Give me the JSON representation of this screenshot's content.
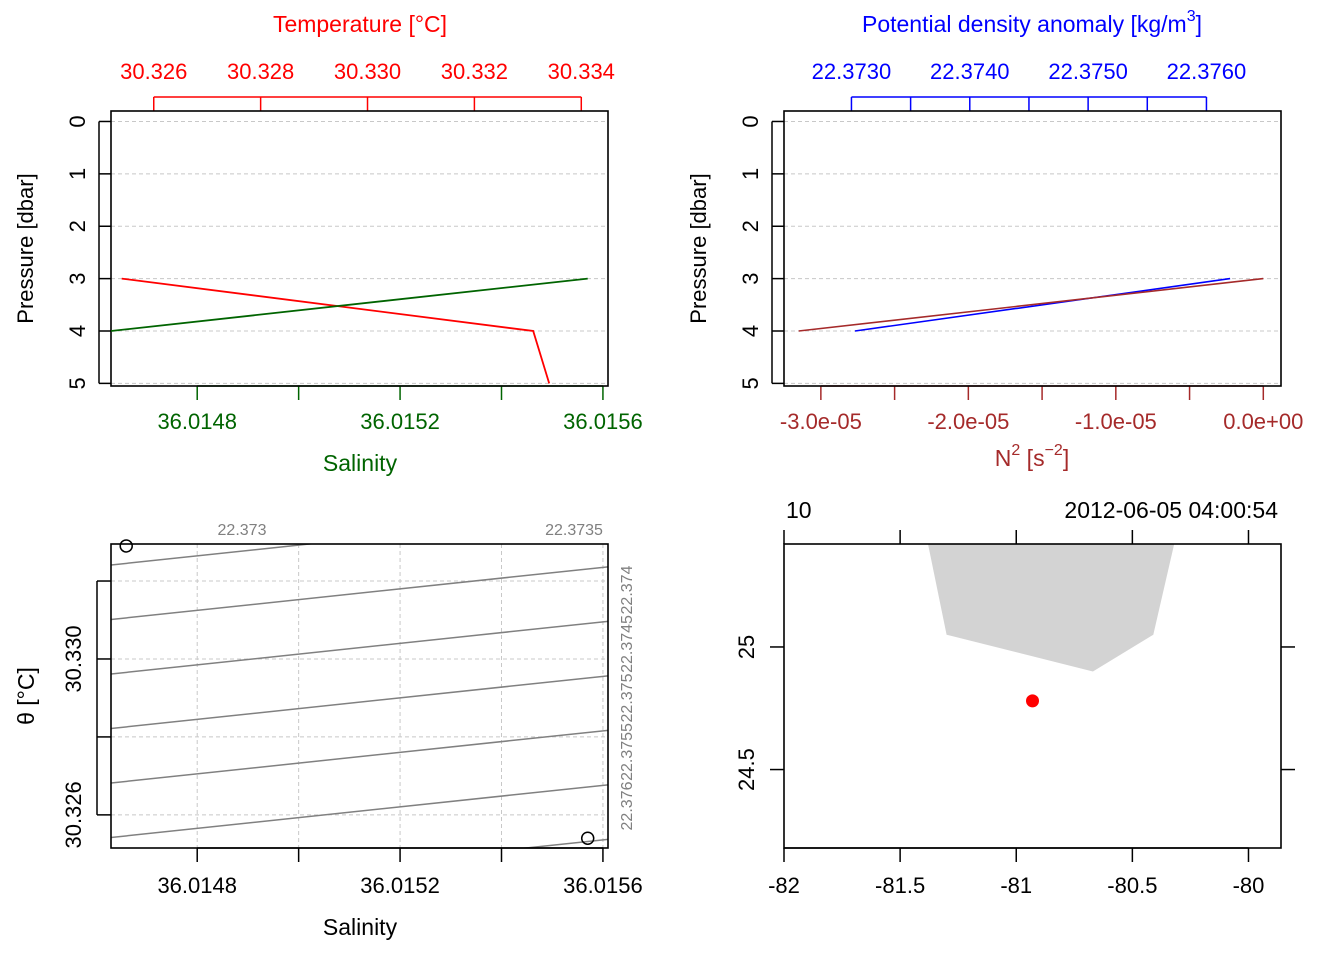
{
  "colors": {
    "temperature": "#ff0000",
    "salinity": "#006400",
    "density": "#0000ff",
    "n2": "#a52a2a",
    "isopycnal": "#808080",
    "grid": "#c8c8c8",
    "land": "#d3d3d3",
    "station": "#ff0000"
  },
  "chart_data": [
    {
      "type": "line",
      "panel": "profile-temperature-salinity",
      "ylabel": "Pressure [dbar]",
      "yticks": [
        "0",
        "1",
        "2",
        "3",
        "4",
        "5"
      ],
      "ylim": [
        5.05,
        -0.2
      ],
      "top_axis": {
        "label": "Temperature [°C]",
        "ticks": [
          "30.326",
          "30.328",
          "30.330",
          "30.332",
          "30.334"
        ],
        "lim": [
          30.3252,
          30.3345
        ]
      },
      "bottom_axis": {
        "label": "Salinity",
        "ticks": [
          "36.0148",
          "36.0152",
          "36.0156"
        ],
        "lim": [
          36.01463,
          36.01561
        ]
      },
      "series": [
        {
          "quantity": "temperature",
          "x": [
            30.3254,
            30.3331,
            30.3334
          ],
          "y": [
            3,
            4,
            5
          ]
        },
        {
          "quantity": "salinity",
          "x": [
            36.01463,
            36.01557
          ],
          "y": [
            4,
            3
          ]
        }
      ],
      "grid": true
    },
    {
      "type": "line",
      "panel": "profile-density-n2",
      "ylabel": "Pressure [dbar]",
      "yticks": [
        "0",
        "1",
        "2",
        "3",
        "4",
        "5"
      ],
      "ylim": [
        5.05,
        -0.2
      ],
      "top_axis": {
        "label": "Potential density anomaly [kg/m",
        "label_sup": "3",
        "label_end": "]",
        "ticks": [
          "22.3730",
          "22.3740",
          "22.3750",
          "22.3760"
        ],
        "lim": [
          22.37243,
          22.37663
        ]
      },
      "bottom_axis": {
        "label": "N",
        "label_sup": "2",
        "label_mid": " [s",
        "label_sup2": "−2",
        "label_end": "]",
        "ticks": [
          "-3.0e-05",
          "-2.0e-05",
          "-1.0e-05",
          "0.0e+00"
        ],
        "lim": [
          -3.25e-05,
          1.2e-06
        ]
      },
      "series": [
        {
          "quantity": "density",
          "x": [
            22.3762,
            22.37303
          ],
          "y": [
            3,
            4
          ]
        },
        {
          "quantity": "n2",
          "x": [
            0.0,
            -3.15e-05
          ],
          "y": [
            3,
            4
          ]
        }
      ],
      "grid": true
    },
    {
      "type": "scatter",
      "panel": "ts-diagram",
      "xlabel": "Salinity",
      "ylabel": "θ [°C]",
      "xticks": [
        "36.0148",
        "36.0152",
        "36.0156"
      ],
      "xlim": [
        36.01463,
        36.01561
      ],
      "yticks": [
        "30.326",
        "30.330"
      ],
      "ylim": [
        30.32515,
        30.33295
      ],
      "points": [
        {
          "salinity": 36.01466,
          "theta": 30.3329
        },
        {
          "salinity": 36.01557,
          "theta": 30.3254
        }
      ],
      "isopycnal_labels_top": [
        "22.373",
        "22.3735"
      ],
      "isopycnal_labels_right": [
        "22.374",
        "22.3745",
        "22.375",
        "22.3755",
        "22.376"
      ],
      "grid": true
    },
    {
      "type": "scatter",
      "panel": "station-map",
      "corner_left": "10",
      "corner_right": "2012-06-05 04:00:54",
      "xticks": [
        "-82",
        "-81.5",
        "-81",
        "-80.5",
        "-80"
      ],
      "xlim": [
        -82.0,
        -79.86
      ],
      "yticks": [
        "24.5",
        "25"
      ],
      "ylim": [
        24.18,
        25.42
      ],
      "station": {
        "longitude": -80.93,
        "latitude": 24.78
      },
      "land": [
        {
          "longitude": -81.38,
          "latitude": 25.42
        },
        {
          "longitude": -81.3,
          "latitude": 25.05
        },
        {
          "longitude": -80.67,
          "latitude": 24.9
        },
        {
          "longitude": -80.41,
          "latitude": 25.05
        },
        {
          "longitude": -80.32,
          "latitude": 25.42
        }
      ]
    }
  ]
}
